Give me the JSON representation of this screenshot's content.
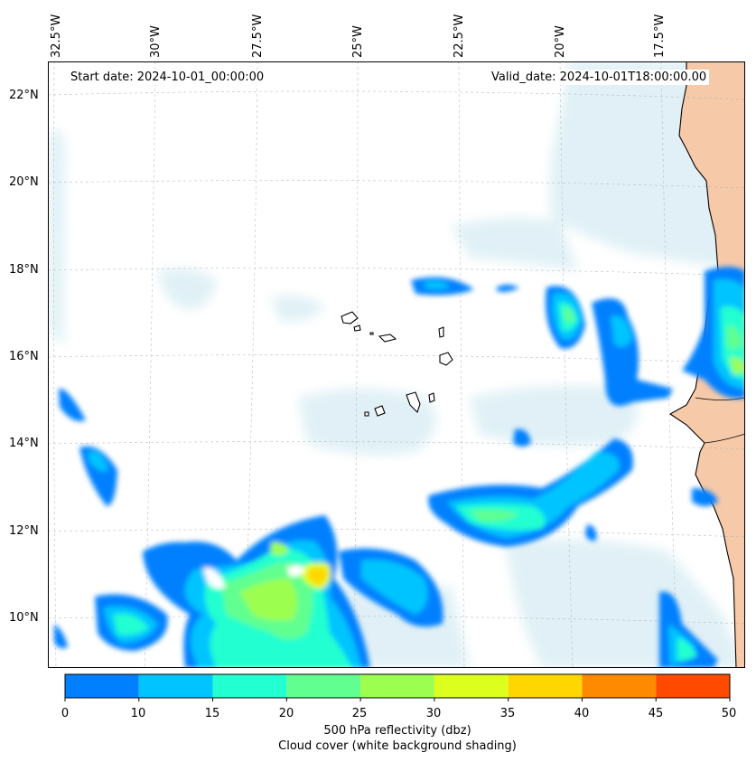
{
  "annotations": {
    "start_date": "Start date: 2024-10-01_00:00:00",
    "valid_date": "Valid_date: 2024-10-01T18:00:00.00"
  },
  "map": {
    "longitude_labels": [
      "32.5°W",
      "30°W",
      "27.5°W",
      "25°W",
      "22.5°W",
      "20°W",
      "17.5°W"
    ],
    "latitude_labels": [
      "22°N",
      "20°N",
      "18°N",
      "16°N",
      "14°N",
      "12°N",
      "10°N"
    ],
    "land_color": "#f6c9a8",
    "cloud_color": "#d6ecf3",
    "coastline_color": "#000000"
  },
  "colorbar": {
    "ticks": [
      "0",
      "10",
      "15",
      "20",
      "25",
      "30",
      "35",
      "40",
      "45",
      "50"
    ],
    "colors": [
      "#0080ff",
      "#00c4ff",
      "#22ffd0",
      "#60ff90",
      "#9cff50",
      "#dcff1e",
      "#ffd700",
      "#ff8a00",
      "#ff4a00"
    ],
    "label_line1": "500 hPa reflectivity (dbz)",
    "label_line2": "Cloud cover (white background shading)"
  }
}
